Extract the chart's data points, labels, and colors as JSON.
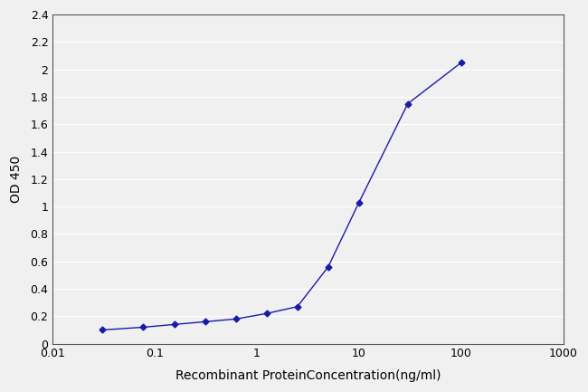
{
  "x": [
    0.031,
    0.078,
    0.156,
    0.313,
    0.625,
    1.25,
    2.5,
    5.0,
    10.0,
    30.0,
    100.0
  ],
  "y": [
    0.1,
    0.12,
    0.14,
    0.16,
    0.18,
    0.22,
    0.27,
    0.56,
    1.03,
    1.75,
    2.05
  ],
  "line_color": "#1a1aaa",
  "marker": "D",
  "marker_size": 3.5,
  "line_width": 1.0,
  "xlabel": "Recombinant ProteinConcentration(ng/ml)",
  "ylabel": "OD 450",
  "xlim": [
    0.01,
    1000
  ],
  "ylim": [
    0,
    2.4
  ],
  "yticks": [
    0,
    0.2,
    0.4,
    0.6,
    0.8,
    1.0,
    1.2,
    1.4,
    1.6,
    1.8,
    2.0,
    2.2,
    2.4
  ],
  "xtick_labels": [
    "0.01",
    "0.1",
    "1",
    "10",
    "100",
    "1000"
  ],
  "xtick_values": [
    0.01,
    0.1,
    1,
    10,
    100,
    1000
  ],
  "plot_bg": "#f0f0f0",
  "fig_bg": "#f0f0f0",
  "grid_color": "#ffffff",
  "xlabel_fontsize": 10,
  "ylabel_fontsize": 10,
  "tick_fontsize": 9,
  "border_color": "#555555"
}
